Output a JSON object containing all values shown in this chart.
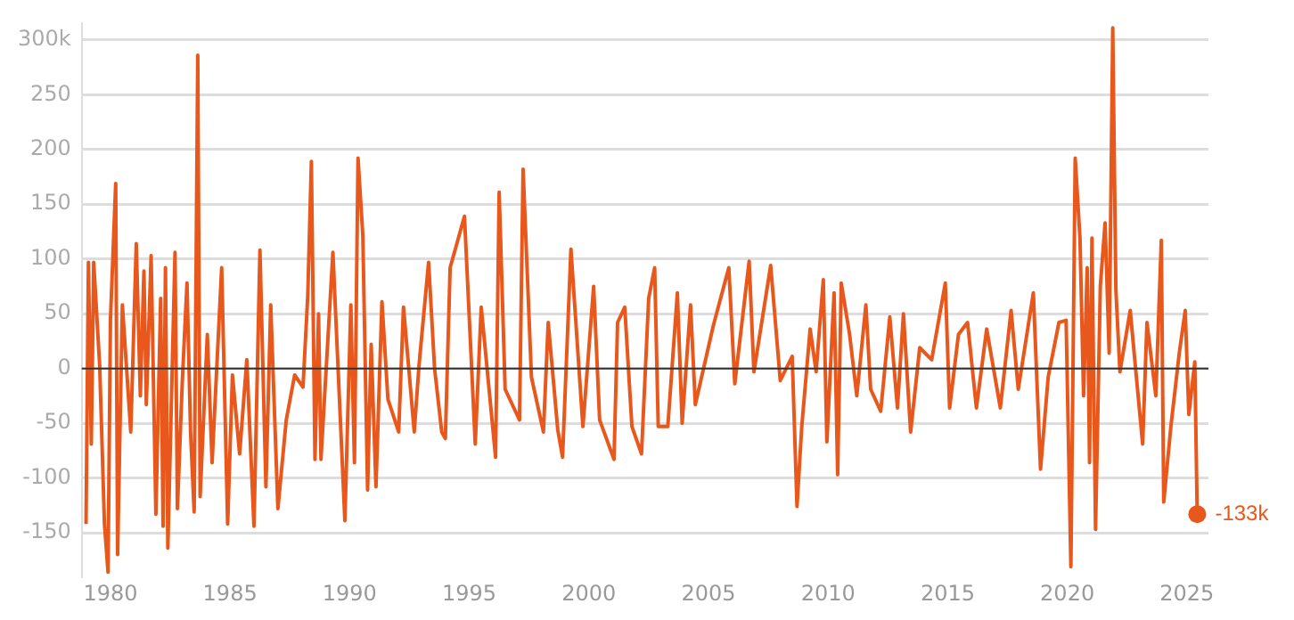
{
  "chart_data": {
    "type": "line",
    "color": "#e8581c",
    "marker": "none",
    "line_style": "solid",
    "grid": "y",
    "legend": false,
    "x": [
      1978.98,
      1979.08,
      1979.2,
      1979.3,
      1979.55,
      1979.75,
      1979.9,
      1980.0,
      1980.22,
      1980.3,
      1980.5,
      1980.85,
      1981.08,
      1981.25,
      1981.4,
      1981.5,
      1981.7,
      1981.9,
      1982.1,
      1982.2,
      1982.3,
      1982.4,
      1982.7,
      1982.8,
      1983.0,
      1983.2,
      1983.35,
      1983.5,
      1983.65,
      1983.75,
      1984.05,
      1984.25,
      1984.65,
      1984.9,
      1985.1,
      1985.4,
      1985.7,
      1986.0,
      1986.25,
      1986.5,
      1986.7,
      1987.0,
      1987.35,
      1987.7,
      1988.05,
      1988.25,
      1988.4,
      1988.55,
      1988.7,
      1988.8,
      1989.3,
      1989.8,
      1990.05,
      1990.2,
      1990.35,
      1990.55,
      1990.75,
      1990.9,
      1991.1,
      1991.35,
      1991.6,
      1992.05,
      1992.25,
      1992.7,
      1992.9,
      1993.3,
      1993.55,
      1993.85,
      1994.0,
      1994.2,
      1994.8,
      1995.25,
      1995.5,
      1996.1,
      1996.25,
      1996.5,
      1997.1,
      1997.25,
      1997.6,
      1998.1,
      1998.3,
      1998.7,
      1998.9,
      1999.25,
      1999.75,
      2000.2,
      2000.45,
      2001.05,
      2001.2,
      2001.5,
      2001.8,
      2002.2,
      2002.5,
      2002.75,
      2002.9,
      2003.3,
      2003.7,
      2003.9,
      2004.25,
      2004.45,
      2005.2,
      2005.85,
      2006.1,
      2006.7,
      2006.9,
      2007.6,
      2008.0,
      2008.5,
      2008.7,
      2008.9,
      2009.25,
      2009.5,
      2009.8,
      2009.95,
      2010.25,
      2010.4,
      2010.55,
      2010.9,
      2011.2,
      2011.58,
      2011.78,
      2012.2,
      2012.58,
      2012.9,
      2013.15,
      2013.45,
      2013.83,
      2014.33,
      2014.9,
      2015.08,
      2015.45,
      2015.83,
      2016.2,
      2016.63,
      2017.2,
      2017.65,
      2017.95,
      2018.58,
      2018.88,
      2019.2,
      2019.65,
      2019.95,
      2020.15,
      2020.33,
      2020.53,
      2020.68,
      2020.83,
      2020.93,
      2021.03,
      2021.18,
      2021.38,
      2021.58,
      2021.75,
      2021.9,
      2022.03,
      2022.2,
      2022.63,
      2022.88,
      2023.15,
      2023.33,
      2023.7,
      2023.93,
      2024.03,
      2024.33,
      2024.68,
      2024.93,
      2025.08,
      2025.33,
      2025.43
    ],
    "values": [
      -142,
      97,
      -69,
      97,
      3,
      -142,
      -186,
      44,
      169,
      -170,
      58,
      -58,
      114,
      -25,
      89,
      -33,
      103,
      -133,
      64,
      -144,
      92,
      -164,
      106,
      -128,
      -14,
      78,
      -58,
      -131,
      286,
      -117,
      31,
      -86,
      92,
      -142,
      -6,
      -78,
      8,
      -144,
      108,
      -108,
      58,
      -128,
      -47,
      -6,
      -17,
      67,
      189,
      -83,
      50,
      -83,
      106,
      -139,
      58,
      -86,
      192,
      122,
      -111,
      22,
      -108,
      61,
      -28,
      -58,
      56,
      -58,
      3,
      97,
      0,
      -58,
      -64,
      92,
      139,
      -69,
      56,
      -81,
      161,
      -19,
      -47,
      182,
      -8,
      -58,
      42,
      -56,
      -81,
      109,
      -53,
      75,
      -47,
      -83,
      42,
      56,
      -53,
      -78,
      64,
      92,
      -53,
      -53,
      69,
      -50,
      58,
      -33,
      39,
      92,
      -14,
      98,
      -3,
      94,
      -11,
      11,
      -126,
      -53,
      36,
      -3,
      81,
      -67,
      69,
      -97,
      78,
      31,
      -25,
      58,
      -19,
      -39,
      47,
      -36,
      50,
      -58,
      19,
      8,
      78,
      -36,
      31,
      42,
      -36,
      36,
      -36,
      53,
      -19,
      69,
      -92,
      -8,
      42,
      44,
      -181,
      192,
      119,
      -25,
      92,
      -86,
      119,
      -147,
      75,
      133,
      14,
      311,
      72,
      -3,
      53,
      -6,
      -69,
      42,
      -25,
      117,
      -122,
      -53,
      14,
      53,
      -42,
      6,
      -133
    ],
    "xlim": [
      1978.8,
      2025.9
    ],
    "xticks": [
      1980,
      1985,
      1990,
      1995,
      2000,
      2005,
      2010,
      2015,
      2020,
      2025
    ],
    "ylim": [
      -190,
      315
    ],
    "yticks": [
      -150,
      -100,
      -50,
      0,
      50,
      100,
      150,
      200,
      250,
      {
        "value": 300,
        "label": "300k"
      }
    ],
    "ref_lines": [
      {
        "axis": "y",
        "value": 0,
        "color": "#333333"
      }
    ],
    "annotations": [
      {
        "text": "-133k",
        "x": 2025.43,
        "y": -133
      }
    ]
  }
}
